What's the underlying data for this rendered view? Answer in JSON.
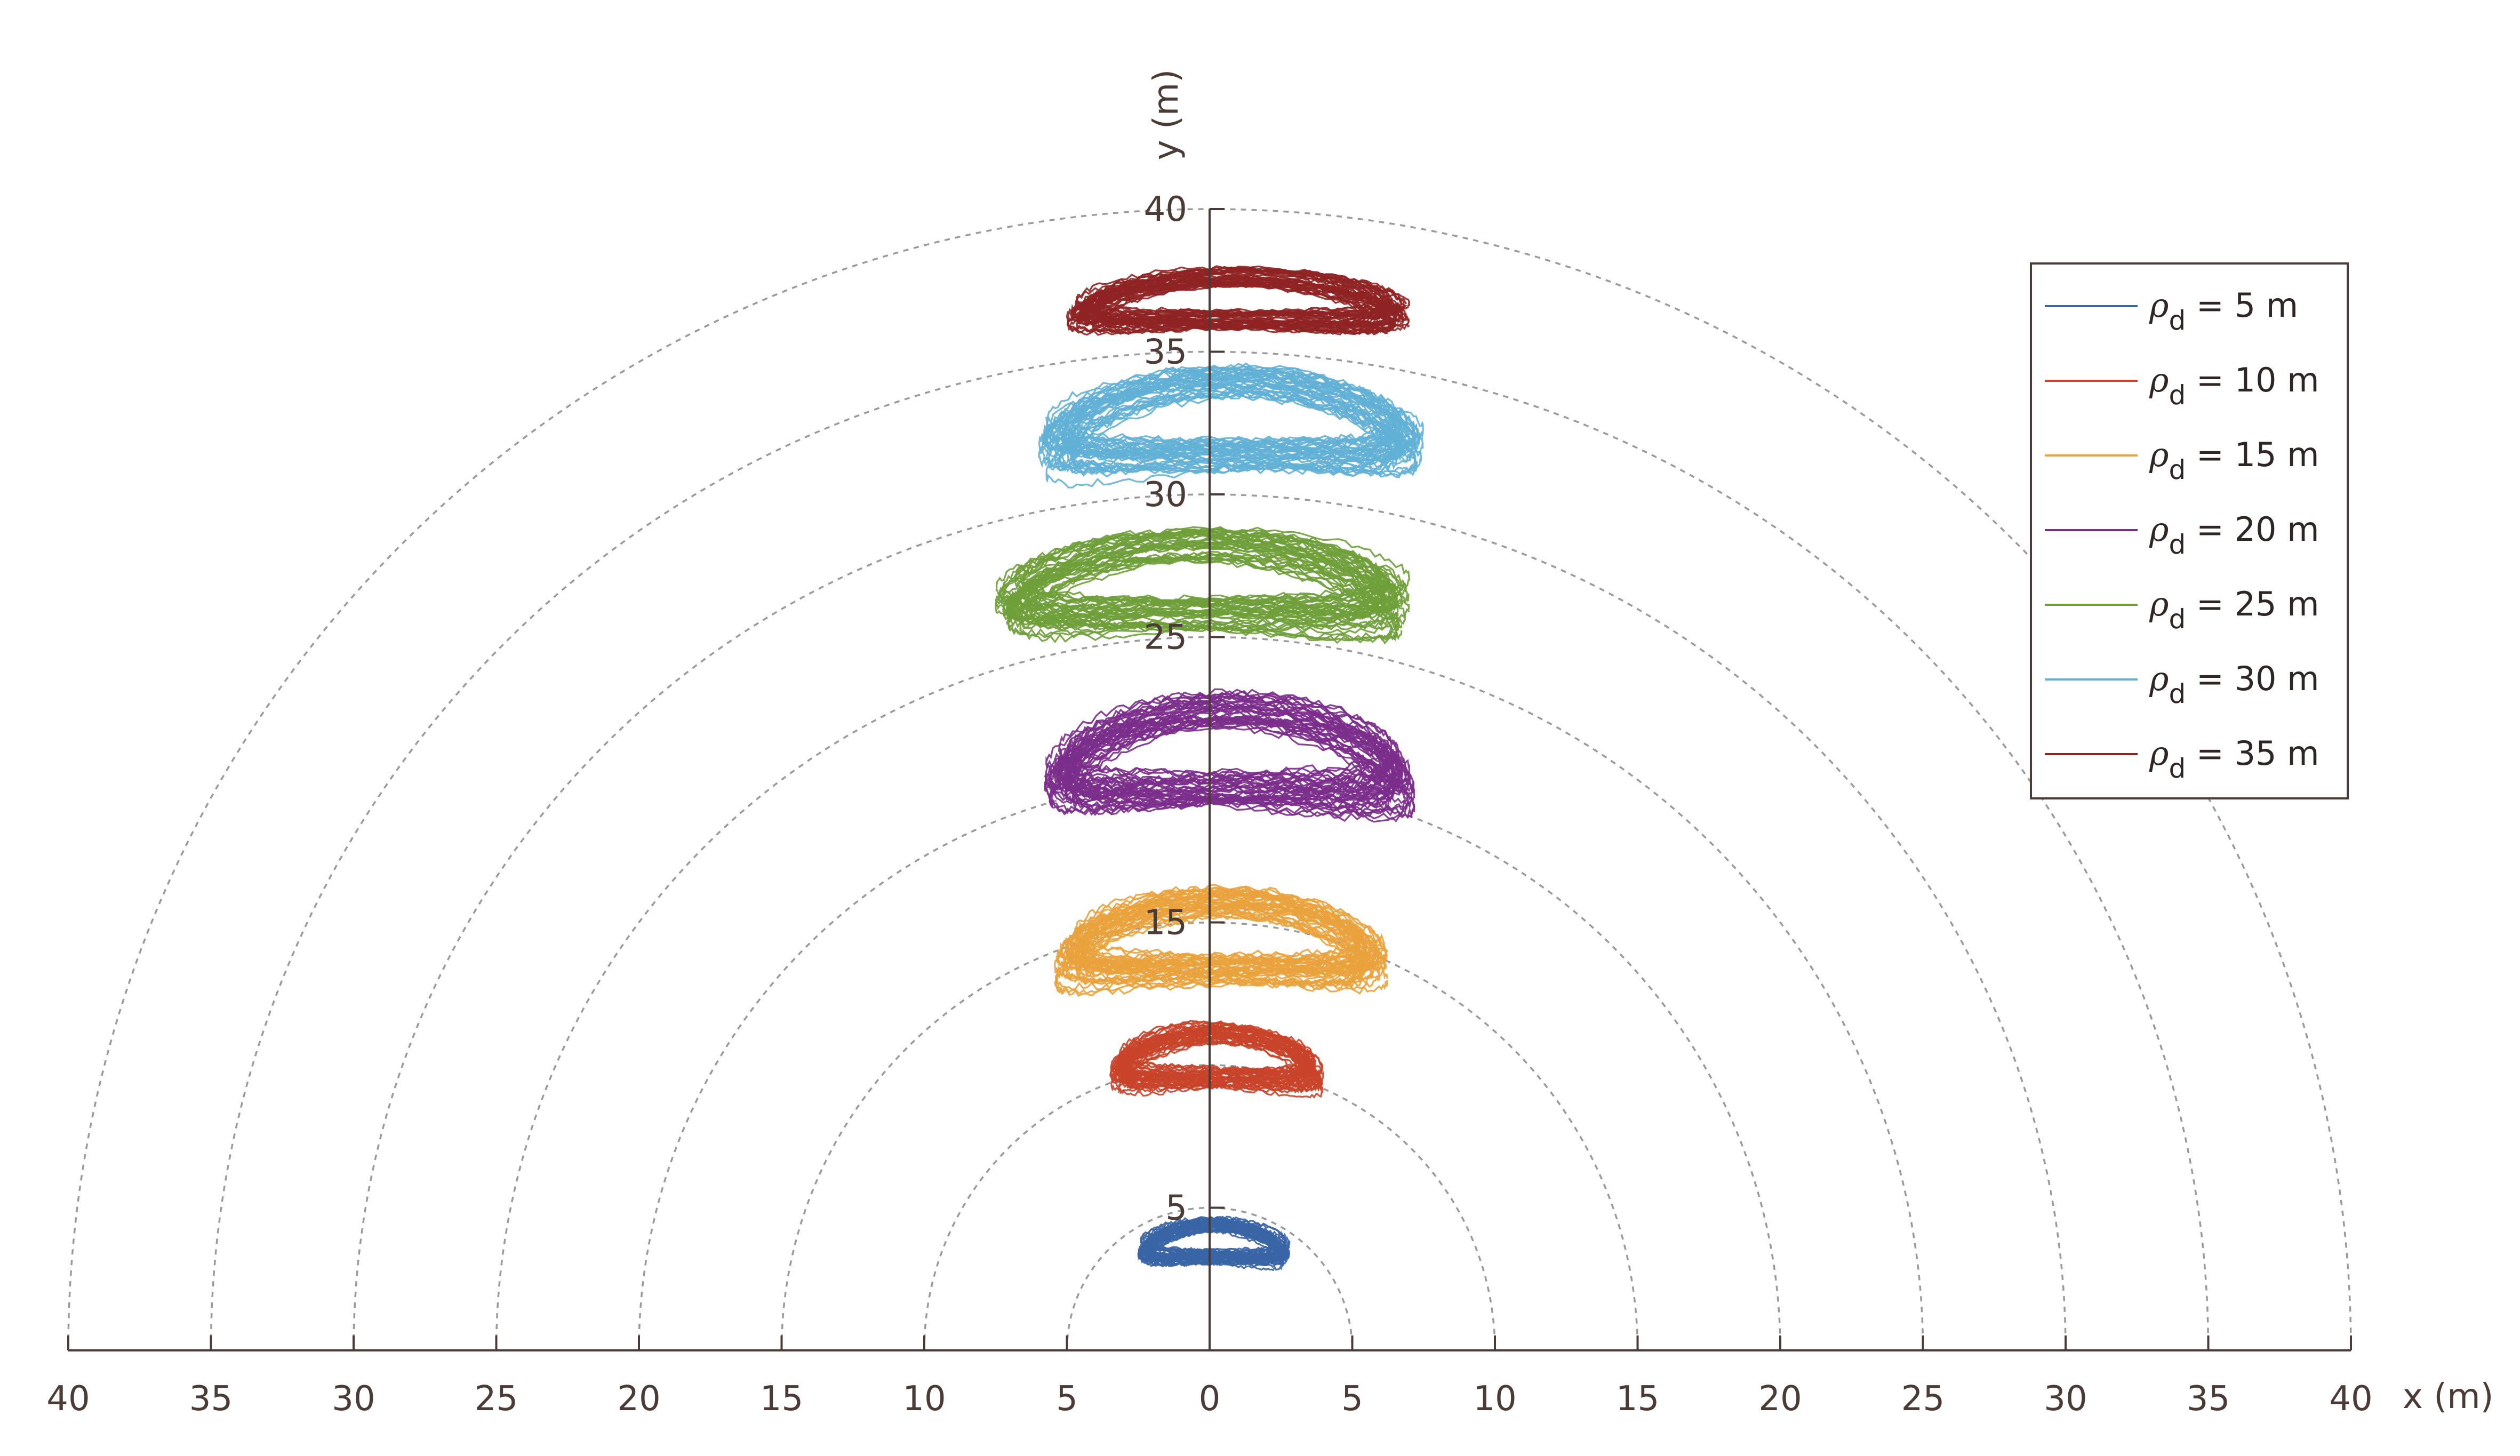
{
  "chart_data": {
    "type": "line",
    "title": "",
    "xlabel": "x (m)",
    "ylabel": "y (m)",
    "xlim": [
      -40,
      40
    ],
    "ylim": [
      0,
      40
    ],
    "x_tick_labels": [
      "40",
      "35",
      "30",
      "25",
      "20",
      "15",
      "10",
      "5",
      "0",
      "5",
      "10",
      "15",
      "20",
      "25",
      "30",
      "35",
      "40"
    ],
    "x_tick_values": [
      -40,
      -35,
      -30,
      -25,
      -20,
      -15,
      -10,
      -5,
      0,
      5,
      10,
      15,
      20,
      25,
      30,
      35,
      40
    ],
    "y_tick_labels": [
      "5",
      "15",
      "25",
      "30",
      "35",
      "40"
    ],
    "y_tick_values": [
      5,
      15,
      25,
      30,
      35,
      40
    ],
    "grid": "dashed semicircles centered at origin",
    "grid_radii": [
      5,
      10,
      15,
      20,
      25,
      30,
      35,
      40
    ],
    "legend_placement": "top-right",
    "legend": [
      {
        "symbol": "ρ",
        "sub": "d",
        "text": "= 5 m",
        "color": "#3a64a6"
      },
      {
        "symbol": "ρ",
        "sub": "d",
        "text": "= 10 m",
        "color": "#c8442a"
      },
      {
        "symbol": "ρ",
        "sub": "d",
        "text": "= 15 m",
        "color": "#eaa23c"
      },
      {
        "symbol": "ρ",
        "sub": "d",
        "text": "= 20 m",
        "color": "#7b2d8b"
      },
      {
        "symbol": "ρ",
        "sub": "d",
        "text": "= 25 m",
        "color": "#6f9f3a"
      },
      {
        "symbol": "ρ",
        "sub": "d",
        "text": "= 30 m",
        "color": "#62b0d6"
      },
      {
        "symbol": "ρ",
        "sub": "d",
        "text": "= 35 m",
        "color": "#8f2323"
      }
    ],
    "series": [
      {
        "name": "ρd = 5 m",
        "color": "#3a64a6",
        "x_range": [
          -2.5,
          2.8
        ],
        "y_range": [
          2.3,
          4.3
        ]
      },
      {
        "name": "ρd = 10 m",
        "color": "#c8442a",
        "x_range": [
          -3.5,
          4.0
        ],
        "y_range": [
          8.2,
          11.0
        ]
      },
      {
        "name": "ρd = 15 m",
        "color": "#eaa23c",
        "x_range": [
          -5.5,
          6.3
        ],
        "y_range": [
          11.3,
          15.5
        ]
      },
      {
        "name": "ρd = 20 m",
        "color": "#7b2d8b",
        "x_range": [
          -5.8,
          7.2
        ],
        "y_range": [
          17.2,
          22.2
        ]
      },
      {
        "name": "ρd = 25 m",
        "color": "#6f9f3a",
        "x_range": [
          -7.5,
          7.0
        ],
        "y_range": [
          23.7,
          28.0
        ]
      },
      {
        "name": "ρd = 30 m",
        "color": "#62b0d6",
        "x_range": [
          -6.0,
          7.5
        ],
        "y_range": [
          29.2,
          33.8
        ]
      },
      {
        "name": "ρd = 35 m",
        "color": "#8f2323",
        "x_range": [
          -5.0,
          7.0
        ],
        "y_range": [
          34.8,
          37.5
        ]
      }
    ]
  }
}
